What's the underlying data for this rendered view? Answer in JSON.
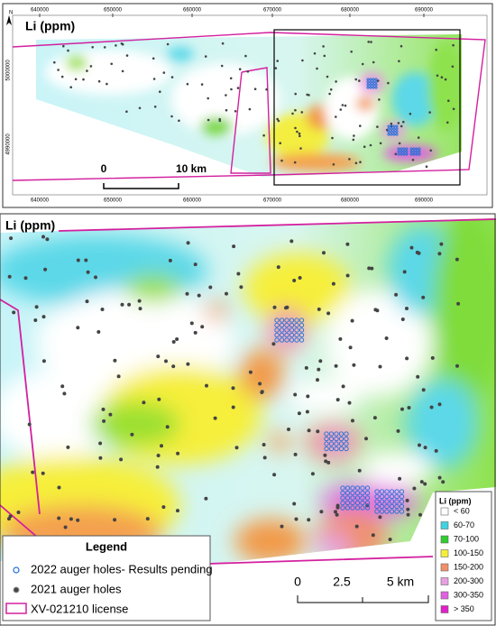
{
  "top_map": {
    "title": "Li (ppm)",
    "north": "N",
    "x_ticks": [
      "640000",
      "650000",
      "660000",
      "670000",
      "680000",
      "690000"
    ],
    "y_ticks": [
      "5000000",
      "4990000"
    ],
    "scale": [
      "0",
      "10 km"
    ]
  },
  "bottom_map": {
    "title": "Li (ppm)",
    "scale": [
      "0",
      "2.5",
      "5 km"
    ]
  },
  "legend": {
    "title": "Legend",
    "items": [
      "2022 auger holes- Results pending",
      "2021 auger holes",
      "XV-021210 license"
    ]
  },
  "li_legend": {
    "title": "Li (ppm)",
    "classes": [
      {
        "label": "< 60",
        "color": "#ffffff"
      },
      {
        "label": "60-70",
        "color": "#3fd3e0"
      },
      {
        "label": "70-100",
        "color": "#2ecc2e"
      },
      {
        "label": "100-150",
        "color": "#f6ef3a"
      },
      {
        "label": "150-200",
        "color": "#f0906a"
      },
      {
        "label": "200-300",
        "color": "#e8a0e0"
      },
      {
        "label": "300-350",
        "color": "#e060e0"
      },
      {
        "label": "> 350",
        "color": "#e020c8"
      }
    ]
  }
}
